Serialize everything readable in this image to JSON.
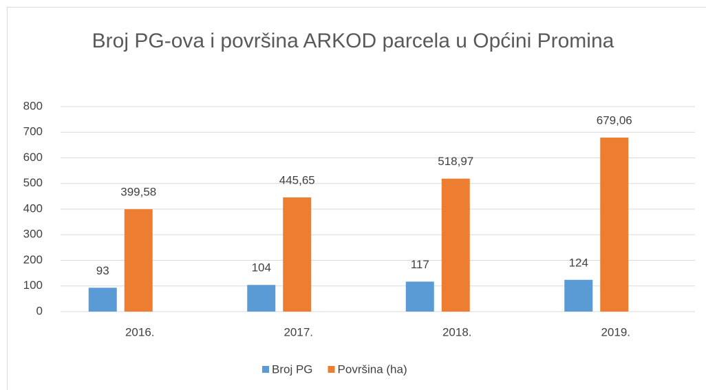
{
  "chart_data": {
    "type": "bar",
    "title": "Broj PG-ova i površina ARKOD parcela u Općini Promina",
    "categories": [
      "2016.",
      "2017.",
      "2018.",
      "2019."
    ],
    "series": [
      {
        "name": "Broj PG",
        "color": "#5b9bd5",
        "values": [
          93,
          104,
          117,
          124
        ]
      },
      {
        "name": "Površina (ha)",
        "color": "#ed7d31",
        "values": [
          399.58,
          445.65,
          518.97,
          679.06
        ],
        "value_labels": [
          "399,58",
          "445,65",
          "518,97",
          "679,06"
        ]
      }
    ],
    "ylim": [
      0,
      800
    ],
    "yticks": [
      0,
      100,
      200,
      300,
      400,
      500,
      600,
      700,
      800
    ],
    "grid": true,
    "legend": "bottom"
  }
}
